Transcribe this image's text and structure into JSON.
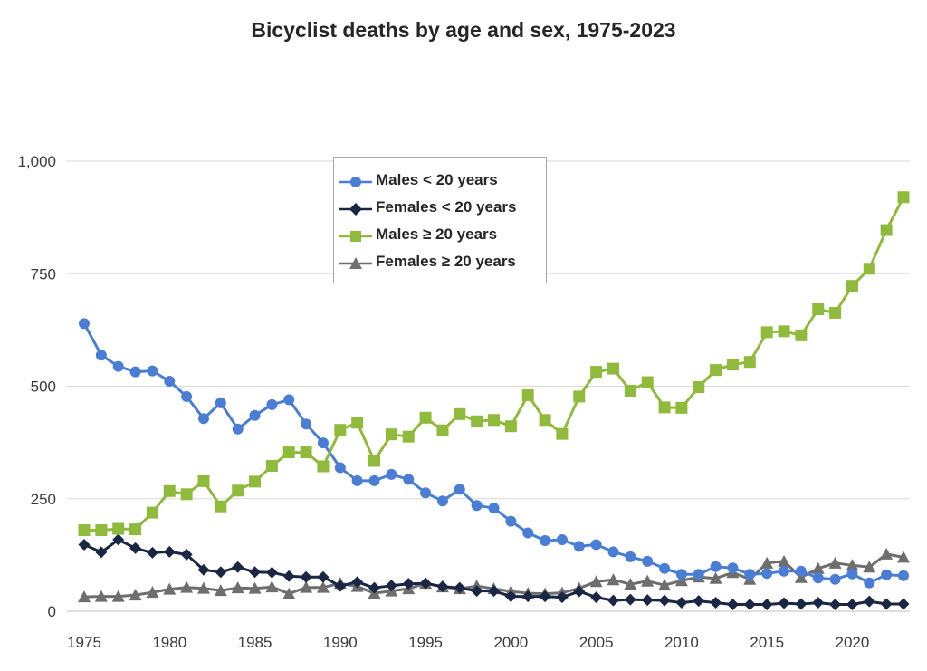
{
  "chart_data": {
    "type": "line",
    "title": "Bicyclist deaths by age and sex, 1975-2023",
    "xlabel": "",
    "ylabel": "",
    "xlim": [
      1975,
      2023
    ],
    "ylim": [
      0,
      1000
    ],
    "y_ticks": [
      0,
      250,
      500,
      750,
      1000
    ],
    "y_tick_labels": [
      "0",
      "250",
      "500",
      "750",
      "1,000"
    ],
    "x_ticks": [
      1975,
      1980,
      1985,
      1990,
      1995,
      2000,
      2005,
      2010,
      2015,
      2020
    ],
    "x_tick_labels": [
      "1975",
      "1980",
      "1985",
      "1990",
      "1995",
      "2000",
      "2005",
      "2010",
      "2015",
      "2020"
    ],
    "grid": "horizontal",
    "legend_position": "top-center",
    "x": [
      1975,
      1976,
      1977,
      1978,
      1979,
      1980,
      1981,
      1982,
      1983,
      1984,
      1985,
      1986,
      1987,
      1988,
      1989,
      1990,
      1991,
      1992,
      1993,
      1994,
      1995,
      1996,
      1997,
      1998,
      1999,
      2000,
      2001,
      2002,
      2003,
      2004,
      2005,
      2006,
      2007,
      2008,
      2009,
      2010,
      2011,
      2012,
      2013,
      2014,
      2015,
      2016,
      2017,
      2018,
      2019,
      2020,
      2021,
      2022,
      2023
    ],
    "series": [
      {
        "name": "Males < 20 years",
        "color": "#4a7ed4",
        "marker": "circle",
        "values": [
          639,
          569,
          544,
          532,
          534,
          511,
          477,
          428,
          463,
          405,
          435,
          459,
          470,
          416,
          374,
          319,
          290,
          290,
          304,
          293,
          263,
          245,
          271,
          235,
          229,
          200,
          174,
          157,
          159,
          144,
          148,
          132,
          121,
          111,
          95,
          82,
          82,
          99,
          96,
          82,
          84,
          89,
          89,
          74,
          71,
          83,
          63,
          81,
          79
        ]
      },
      {
        "name": "Females < 20 years",
        "color": "#1a2744",
        "marker": "diamond",
        "values": [
          148,
          131,
          159,
          140,
          130,
          132,
          126,
          92,
          87,
          98,
          87,
          86,
          78,
          76,
          76,
          56,
          65,
          52,
          57,
          61,
          62,
          55,
          52,
          45,
          45,
          33,
          33,
          33,
          31,
          44,
          31,
          24,
          26,
          25,
          24,
          19,
          23,
          19,
          15,
          15,
          15,
          18,
          16,
          19,
          15,
          15,
          22,
          16,
          16
        ]
      },
      {
        "name": "Males ≥ 20 years",
        "color": "#8fba3b",
        "marker": "square",
        "values": [
          180,
          180,
          183,
          182,
          219,
          267,
          260,
          289,
          233,
          268,
          288,
          323,
          353,
          353,
          322,
          403,
          419,
          334,
          393,
          388,
          430,
          402,
          438,
          422,
          425,
          411,
          480,
          425,
          394,
          477,
          532,
          539,
          490,
          509,
          453,
          452,
          498,
          536,
          548,
          554,
          620,
          622,
          613,
          671,
          663,
          723,
          761,
          847,
          920
        ]
      },
      {
        "name": "Females ≥ 20 years",
        "color": "#6e6e6e",
        "marker": "triangle",
        "values": [
          32,
          33,
          33,
          36,
          42,
          49,
          53,
          51,
          46,
          52,
          51,
          54,
          39,
          53,
          53,
          62,
          55,
          40,
          45,
          50,
          62,
          54,
          50,
          56,
          50,
          44,
          40,
          39,
          41,
          51,
          66,
          70,
          60,
          67,
          58,
          68,
          76,
          73,
          86,
          71,
          107,
          111,
          75,
          95,
          107,
          102,
          98,
          127,
          120
        ]
      }
    ]
  }
}
